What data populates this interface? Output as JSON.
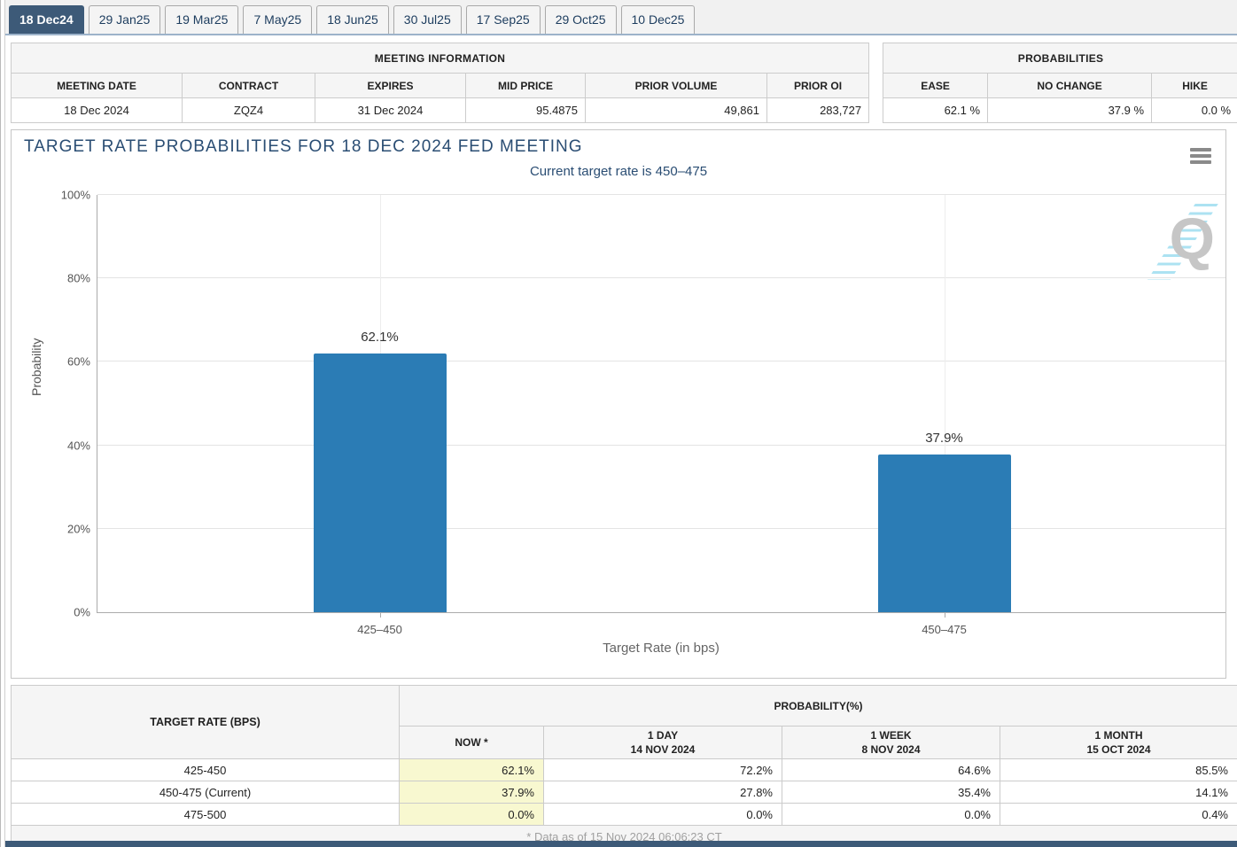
{
  "tabs": {
    "items": [
      "18 Dec24",
      "29 Jan25",
      "19 Mar25",
      "7 May25",
      "18 Jun25",
      "30 Jul25",
      "17 Sep25",
      "29 Oct25",
      "10 Dec25"
    ],
    "active_index": 0
  },
  "meeting_info": {
    "title": "MEETING INFORMATION",
    "columns": [
      "MEETING DATE",
      "CONTRACT",
      "EXPIRES",
      "MID PRICE",
      "PRIOR VOLUME",
      "PRIOR OI"
    ],
    "row": [
      "18 Dec 2024",
      "ZQZ4",
      "31 Dec 2024",
      "95.4875",
      "49,861",
      "283,727"
    ]
  },
  "probabilities": {
    "title": "PROBABILITIES",
    "columns": [
      "EASE",
      "NO CHANGE",
      "HIKE"
    ],
    "row": [
      "62.1 %",
      "37.9 %",
      "0.0 %"
    ]
  },
  "chart_data": {
    "type": "bar",
    "title": "TARGET RATE PROBABILITIES FOR 18 DEC 2024 FED MEETING",
    "subtitle": "Current target rate is 450–475",
    "categories": [
      "425–450",
      "450–475"
    ],
    "values": [
      62.1,
      37.9
    ],
    "value_labels": [
      "62.1%",
      "37.9%"
    ],
    "xlabel": "Target Rate (in bps)",
    "ylabel": "Probability",
    "ylim": [
      0,
      100
    ],
    "yticks": [
      0,
      20,
      40,
      60,
      80,
      100
    ],
    "ytick_labels": [
      "0%",
      "20%",
      "40%",
      "60%",
      "80%",
      "100%"
    ],
    "bar_color": "#2b7cb5",
    "grid": true,
    "legend": false,
    "watermark_letter": "Q"
  },
  "history_table": {
    "rate_header": "TARGET RATE (BPS)",
    "group_header": "PROBABILITY(%)",
    "columns": [
      [
        "NOW *"
      ],
      [
        "1 DAY",
        "14 NOV 2024"
      ],
      [
        "1 WEEK",
        "8 NOV 2024"
      ],
      [
        "1 MONTH",
        "15 OCT 2024"
      ]
    ],
    "rows": [
      {
        "rate": "425-450",
        "values": [
          "62.1%",
          "72.2%",
          "64.6%",
          "85.5%"
        ]
      },
      {
        "rate": "450-475 (Current)",
        "values": [
          "37.9%",
          "27.8%",
          "35.4%",
          "14.1%"
        ]
      },
      {
        "rate": "475-500",
        "values": [
          "0.0%",
          "0.0%",
          "0.0%",
          "0.4%"
        ]
      }
    ],
    "footnote": "* Data as of 15 Nov 2024 06:06:23 CT"
  },
  "colors": {
    "accent": "#3d5a78",
    "bar": "#2b7cb5",
    "now_highlight": "#f8f8d0"
  }
}
